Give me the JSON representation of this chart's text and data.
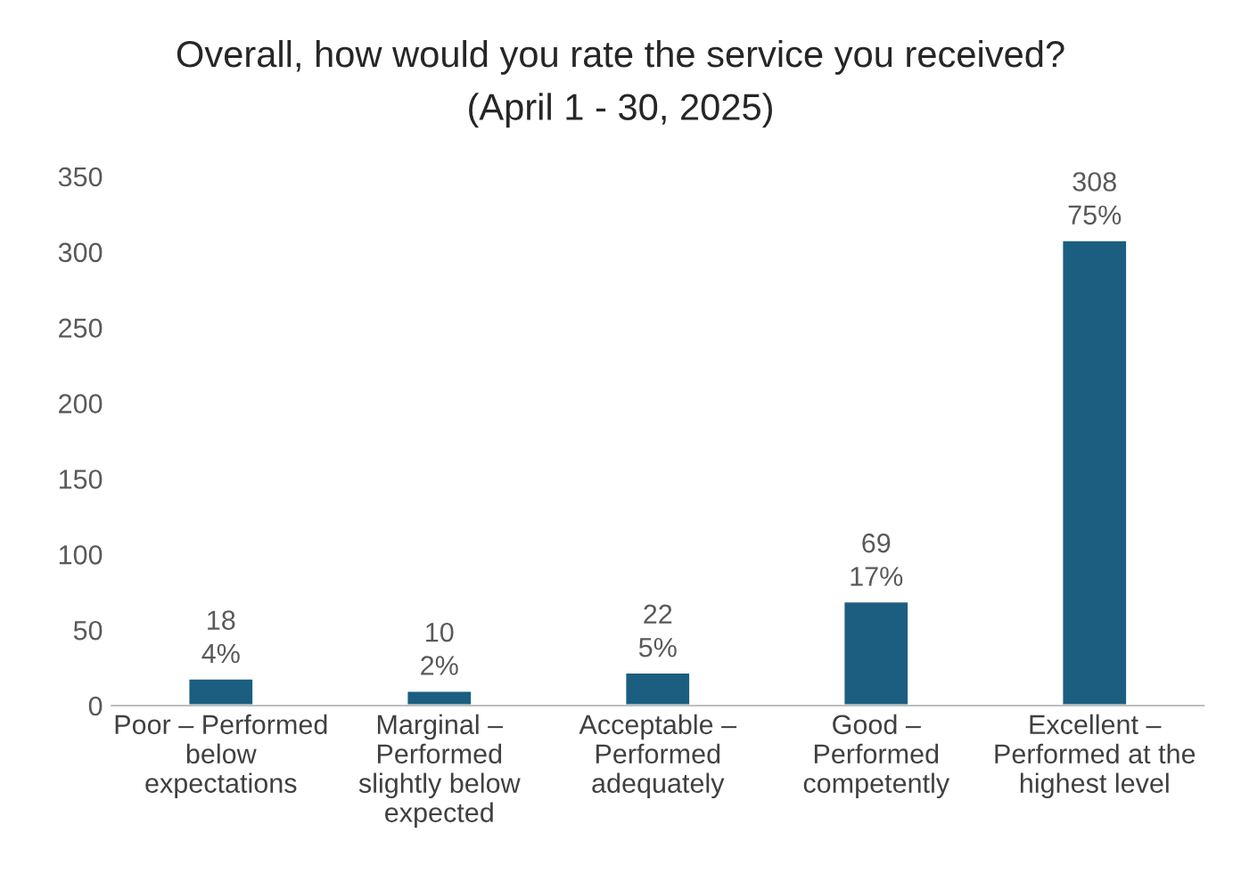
{
  "chart_data": {
    "type": "bar",
    "title": "Overall, how would you rate the service you received?",
    "subtitle": "(April 1 - 30, 2025)",
    "categories": [
      "Poor – Performed\nbelow\nexpectations",
      "Marginal –\nPerformed\nslightly below\nexpected",
      "Acceptable –\nPerformed\nadequately",
      "Good –\nPerformed\ncompetently",
      "Excellent –\nPerformed at the\nhighest level"
    ],
    "values": [
      18,
      10,
      22,
      69,
      308
    ],
    "color": "#1b5e80",
    "value_labels": [
      "18\n4%",
      "10\n2%",
      "22\n5%",
      "69\n17%",
      "308\n75%"
    ],
    "ylim": [
      0,
      350
    ],
    "yticks": [
      0,
      50,
      100,
      150,
      200,
      250,
      300,
      350
    ],
    "grid": false,
    "legend": false
  }
}
